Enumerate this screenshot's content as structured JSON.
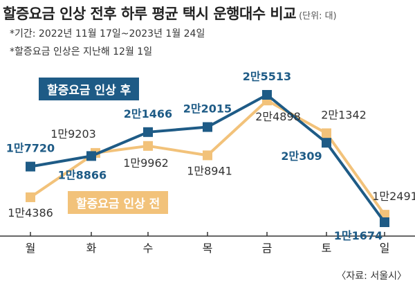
{
  "header": {
    "title": "할증요금 인상 전후 하루 평균 택시 운행대수 비교",
    "unit": "(단위: 대)",
    "note1": "*기간: 2022년 11월 17일~2023년 1월 24일",
    "note2": "*할증요금 인상은 지난해 12월 1일",
    "source": "〈자료: 서울시〉"
  },
  "colors": {
    "after": "#1e5b86",
    "before": "#f2c27a",
    "axis": "#333333"
  },
  "chart_data": {
    "type": "line",
    "categories": [
      "월",
      "화",
      "수",
      "목",
      "금",
      "토",
      "일"
    ],
    "ylim": [
      11000,
      26500
    ],
    "series": [
      {
        "name": "할증요금 인상 후",
        "values": [
          17720,
          18866,
          21466,
          22015,
          25513,
          20309,
          11674
        ],
        "labels": [
          "1만7720",
          "1만8866",
          "2만1466",
          "2만2015",
          "2만5513",
          "2만309",
          "1만1674"
        ]
      },
      {
        "name": "할증요금 인상 전",
        "values": [
          14386,
          19203,
          19962,
          18941,
          24898,
          21342,
          12491
        ],
        "labels": [
          "1만4386",
          "1만9203",
          "1만9962",
          "1만8941",
          "2만4898",
          "2만1342",
          "1만2491"
        ]
      }
    ]
  }
}
